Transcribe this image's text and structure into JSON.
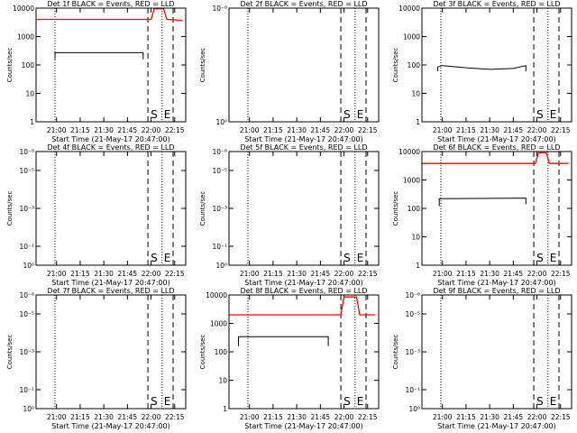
{
  "chart_data": [
    {
      "type": "line",
      "title": "Det 1f BLACK = Events, RED = LLD",
      "xlabel": "Start Time (21-May-17 20:47:00)",
      "ylabel": "Counts/sec",
      "yscale": "log",
      "ylim": [
        1,
        10000
      ],
      "yticks": [
        {
          "v": 1,
          "label": "1"
        },
        {
          "v": 10,
          "label": "10"
        },
        {
          "v": 100,
          "label": "100"
        },
        {
          "v": 1000,
          "label": "1000"
        },
        {
          "v": 10000,
          "label": "10000"
        }
      ],
      "xticks": [
        "21:00",
        "21:15",
        "21:30",
        "21:45",
        "22:00",
        "22:15"
      ],
      "se_labels": [
        "S",
        "E"
      ],
      "series": [
        {
          "color": "#000000",
          "x": [
            "20:59",
            "20:59",
            "21:55",
            "21:55"
          ],
          "y": [
            160,
            270,
            270,
            160
          ]
        },
        {
          "color": "#ff0000",
          "x": [
            "20:47",
            "22:00",
            "22:02",
            "22:08",
            "22:10",
            "22:20"
          ],
          "y": [
            4000,
            4000,
            9500,
            9500,
            4000,
            3700
          ]
        }
      ]
    },
    {
      "type": "line",
      "title": "Det 2f BLACK = Events, RED = LLD",
      "xlabel": "Start Time (21-May-17 20:47:00)",
      "ylabel": "Counts/sec",
      "yscale": "log",
      "ylim": [
        1,
        1000000
      ],
      "yticks": [
        {
          "v": 1,
          "label": "10⁰"
        },
        {
          "v": 1000000,
          "label": "10⁻⁶"
        }
      ],
      "xticks": [
        "21:00",
        "21:15",
        "21:30",
        "21:45",
        "22:00",
        "22:15"
      ],
      "se_labels": [
        "S",
        "E"
      ],
      "series": []
    },
    {
      "type": "line",
      "title": "Det 3f BLACK = Events, RED = LLD",
      "xlabel": "Start Time (21-May-17 20:47:00)",
      "ylabel": "Counts/sec",
      "yscale": "log",
      "ylim": [
        1,
        10000
      ],
      "yticks": [
        {
          "v": 1,
          "label": "1"
        },
        {
          "v": 10,
          "label": "10"
        },
        {
          "v": 100,
          "label": "100"
        },
        {
          "v": 1000,
          "label": "1000"
        },
        {
          "v": 10000,
          "label": "10000"
        }
      ],
      "xticks": [
        "21:00",
        "21:15",
        "21:30",
        "21:45",
        "22:00",
        "22:15"
      ],
      "se_labels": [
        "S",
        "E"
      ],
      "series": [
        {
          "color": "#000000",
          "x": [
            "20:57",
            "20:57",
            "21:00",
            "21:15",
            "21:30",
            "21:45",
            "21:53",
            "21:53"
          ],
          "y": [
            60,
            85,
            95,
            80,
            70,
            75,
            95,
            60
          ]
        }
      ]
    },
    {
      "type": "line",
      "title": "Det 4f BLACK = Events, RED = LLD",
      "xlabel": "Start Time (21-May-17 20:47:00)",
      "ylabel": "Counts/sec",
      "yscale": "log",
      "ylim": [
        1,
        1000000
      ],
      "yticks": [
        {
          "v": 1,
          "label": "10⁰"
        },
        {
          "v": 10,
          "label": "10⁻¹"
        },
        {
          "v": 1000,
          "label": "10⁻³"
        },
        {
          "v": 100000,
          "label": "10⁻⁵"
        },
        {
          "v": 1000000,
          "label": "10⁻⁶"
        }
      ],
      "xticks": [
        "21:00",
        "21:15",
        "21:30",
        "21:45",
        "22:00",
        "22:15"
      ],
      "se_labels": [
        "S",
        "E"
      ],
      "series": []
    },
    {
      "type": "line",
      "title": "Det 5f BLACK = Events, RED = LLD",
      "xlabel": "Start Time (21-May-17 20:47:00)",
      "ylabel": "Counts/sec",
      "yscale": "log",
      "ylim": [
        1,
        1000000
      ],
      "yticks": [
        {
          "v": 1,
          "label": "10⁰"
        },
        {
          "v": 10,
          "label": "10⁻¹"
        },
        {
          "v": 1000,
          "label": "10⁻³"
        },
        {
          "v": 100000,
          "label": "10⁻⁵"
        },
        {
          "v": 1000000,
          "label": "10⁻⁶"
        }
      ],
      "xticks": [
        "21:00",
        "21:15",
        "21:30",
        "21:45",
        "22:00",
        "22:15"
      ],
      "se_labels": [
        "S",
        "E"
      ],
      "series": []
    },
    {
      "type": "line",
      "title": "Det 6f BLACK = Events, RED = LLD",
      "xlabel": "Start Time (21-May-17 20:47:00)",
      "ylabel": "Counts/sec",
      "yscale": "log",
      "ylim": [
        1,
        10000
      ],
      "yticks": [
        {
          "v": 1,
          "label": "1"
        },
        {
          "v": 10,
          "label": "10"
        },
        {
          "v": 100,
          "label": "100"
        },
        {
          "v": 1000,
          "label": "1000"
        },
        {
          "v": 10000,
          "label": "10000"
        }
      ],
      "xticks": [
        "21:00",
        "21:15",
        "21:30",
        "21:45",
        "22:00",
        "22:15"
      ],
      "se_labels": [
        "S",
        "E"
      ],
      "series": [
        {
          "color": "#000000",
          "x": [
            "20:58",
            "20:58",
            "21:53",
            "21:53"
          ],
          "y": [
            120,
            220,
            230,
            140
          ]
        },
        {
          "color": "#ff0000",
          "x": [
            "20:47",
            "21:59",
            "22:01",
            "22:06",
            "22:08",
            "22:20"
          ],
          "y": [
            3800,
            3800,
            9000,
            9000,
            3800,
            3800
          ]
        }
      ]
    },
    {
      "type": "line",
      "title": "Det 7f BLACK = Events, RED = LLD",
      "xlabel": "Start Time (21-May-17 20:47:00)",
      "ylabel": "Counts/sec",
      "yscale": "log",
      "ylim": [
        1,
        1000000
      ],
      "yticks": [
        {
          "v": 1,
          "label": "10⁰"
        },
        {
          "v": 10,
          "label": "10⁻¹"
        },
        {
          "v": 1000,
          "label": "10⁻³"
        },
        {
          "v": 100000,
          "label": "10⁻⁵"
        },
        {
          "v": 1000000,
          "label": "10⁻⁶"
        }
      ],
      "xticks": [
        "21:00",
        "21:15",
        "21:30",
        "21:45",
        "22:00",
        "22:15"
      ],
      "se_labels": [
        "S",
        "E"
      ],
      "series": []
    },
    {
      "type": "line",
      "title": "Det 8f BLACK = Events, RED = LLD",
      "xlabel": "Start Time (21-May-17 20:47:00)",
      "ylabel": "Counts/sec",
      "yscale": "log",
      "ylim": [
        1,
        10000
      ],
      "yticks": [
        {
          "v": 1,
          "label": "1"
        },
        {
          "v": 10,
          "label": "10"
        },
        {
          "v": 100,
          "label": "100"
        },
        {
          "v": 1000,
          "label": "1000"
        },
        {
          "v": 10000,
          "label": "10000"
        }
      ],
      "xticks": [
        "21:00",
        "21:15",
        "21:30",
        "21:45",
        "22:00",
        "22:15"
      ],
      "se_labels": [
        "S",
        "E"
      ],
      "series": [
        {
          "color": "#000000",
          "x": [
            "20:53",
            "20:53",
            "21:50",
            "21:50"
          ],
          "y": [
            160,
            340,
            340,
            160
          ]
        },
        {
          "color": "#ff0000",
          "x": [
            "20:47",
            "21:58",
            "22:00",
            "22:08",
            "22:10",
            "22:20"
          ],
          "y": [
            2000,
            2000,
            8500,
            8500,
            2000,
            2000
          ]
        }
      ]
    },
    {
      "type": "line",
      "title": "Det 9f BLACK = Events, RED = LLD",
      "xlabel": "Start Time (21-May-17 20:47:00)",
      "ylabel": "Counts/sec",
      "yscale": "log",
      "ylim": [
        1,
        1000000
      ],
      "yticks": [
        {
          "v": 1,
          "label": "10⁰"
        },
        {
          "v": 10,
          "label": "10⁻¹"
        },
        {
          "v": 1000,
          "label": "10⁻³"
        },
        {
          "v": 100000,
          "label": "10⁻⁵"
        },
        {
          "v": 1000000,
          "label": "10⁻⁶"
        }
      ],
      "xticks": [
        "21:00",
        "21:15",
        "21:30",
        "21:45",
        "22:00",
        "22:15"
      ],
      "se_labels": [
        "S",
        "E"
      ],
      "series": []
    }
  ],
  "markers": {
    "dotted": [
      "20:59",
      "22:07"
    ],
    "dashed": [
      "21:58",
      "22:14"
    ]
  }
}
